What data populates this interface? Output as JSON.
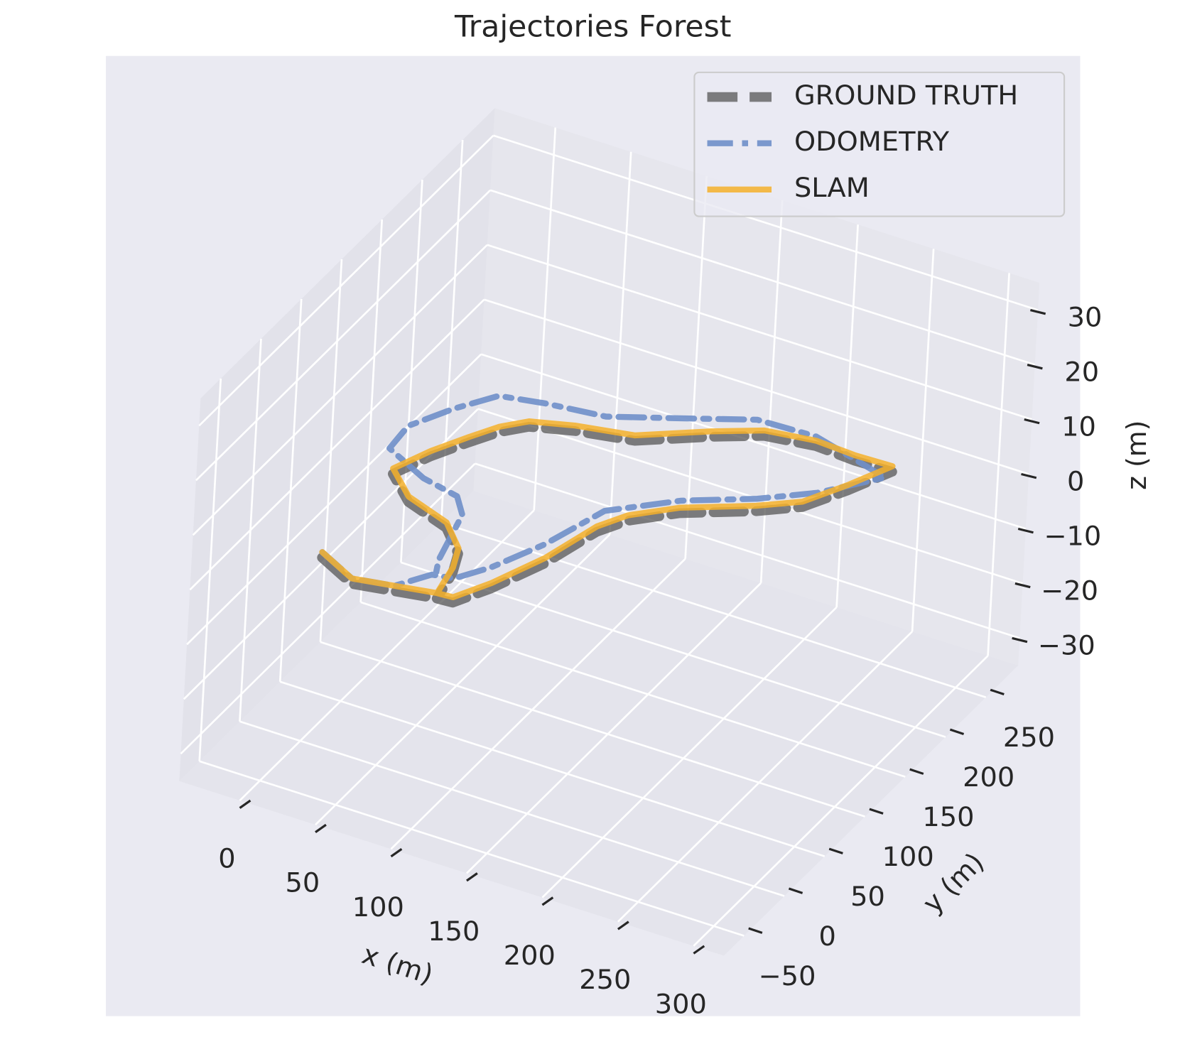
{
  "chart_data": {
    "type": "line3d",
    "title": "Trajectories Forest",
    "xlabel": "x (m)",
    "ylabel": "y (m)",
    "zlabel": "z (m)",
    "xlim": [
      -40,
      320
    ],
    "ylim": [
      -75,
      290
    ],
    "zlim": [
      -35,
      35
    ],
    "xticks": [
      0,
      50,
      100,
      150,
      200,
      250,
      300
    ],
    "yticks": [
      {
        "value": -50,
        "label": "−50"
      },
      0,
      50,
      100,
      150,
      200,
      250
    ],
    "zticks": [
      {
        "value": -30,
        "label": "−30"
      },
      {
        "value": -20,
        "label": "−20"
      },
      {
        "value": -10,
        "label": "−10"
      },
      0,
      10,
      20,
      30
    ],
    "grid": true,
    "legend": "upper right",
    "series": [
      {
        "name": "GROUND TRUTH",
        "color": "#555555",
        "style": "dashed",
        "x": [
          7,
          35,
          60,
          85,
          95,
          107,
          121,
          131,
          141,
          163,
          200,
          221,
          235,
          248,
          224,
          197,
          166,
          140,
          104,
          69,
          44,
          32,
          22,
          10,
          0,
          22,
          54,
          73,
          80,
          85
        ],
        "y": [
          1,
          -15,
          -9,
          -3,
          -2,
          23,
          63,
          109,
          129,
          152,
          177,
          195,
          224,
          256,
          255,
          257,
          251,
          234,
          207,
          198,
          188,
          174,
          155,
          130,
          102,
          80,
          67,
          46,
          26,
          -3
        ],
        "z": [
          -1,
          -1,
          -1,
          -1,
          -1,
          -1,
          -1,
          -1,
          -1,
          -1,
          -1,
          -1,
          -1,
          -1,
          -1,
          -1,
          -1,
          -1,
          -1,
          -1,
          -1,
          -1,
          -1,
          -1,
          -1,
          -1,
          -1,
          -1,
          -1,
          -1
        ]
      },
      {
        "name": "ODOMETRY",
        "color": "#6f8fc9",
        "style": "dashdot",
        "x": [
          7,
          35,
          60,
          73,
          86,
          99,
          114,
          127,
          160,
          197,
          224,
          250,
          226,
          195,
          157,
          118,
          80,
          43,
          16,
          0,
          -14,
          -12,
          20,
          46,
          58,
          69,
          75
        ],
        "y": [
          1,
          -15,
          -9,
          13,
          16,
          38,
          76,
          126,
          159,
          184,
          208,
          243,
          251,
          261,
          259,
          237,
          216,
          210,
          203,
          177,
          147,
          120,
          102,
          95,
          79,
          29,
          14
        ],
        "z": [
          0,
          0,
          0,
          0,
          0,
          0,
          0,
          0,
          0,
          0,
          0,
          0,
          0,
          0,
          0,
          0,
          0,
          0,
          0,
          0,
          0,
          0,
          0,
          0,
          0,
          0,
          0
        ]
      },
      {
        "name": "SLAM",
        "color": "#f5b02a",
        "style": "solid",
        "x": [
          7,
          35,
          60,
          85,
          95,
          107,
          121,
          131,
          141,
          163,
          200,
          221,
          235,
          248,
          224,
          197,
          166,
          140,
          104,
          69,
          44,
          32,
          22,
          10,
          0,
          22,
          54,
          73,
          80,
          85
        ],
        "y": [
          1,
          -15,
          -9,
          -3,
          -2,
          23,
          63,
          109,
          129,
          152,
          177,
          195,
          224,
          256,
          255,
          257,
          251,
          234,
          207,
          198,
          188,
          174,
          155,
          130,
          102,
          80,
          67,
          46,
          26,
          -3
        ],
        "z": [
          0,
          0,
          0,
          0,
          0,
          0,
          0,
          0,
          0,
          0,
          0,
          0,
          0,
          0,
          0,
          0,
          0,
          0,
          0,
          0,
          0,
          0,
          0,
          0,
          0,
          0,
          0,
          0,
          0,
          0
        ]
      }
    ]
  }
}
